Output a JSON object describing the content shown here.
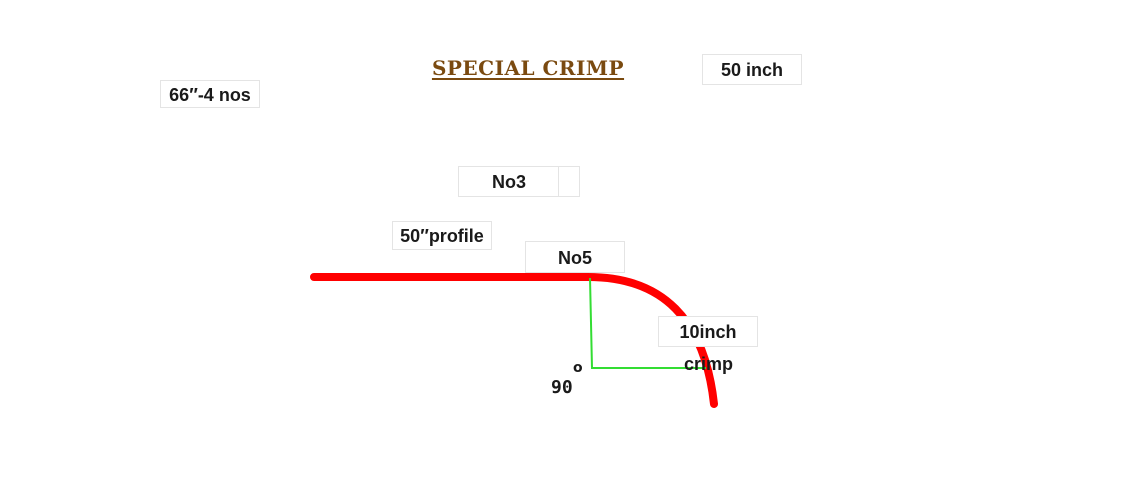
{
  "title": "SPECIAL  CRIMP",
  "labels": {
    "quantity": "66″-4 nos",
    "width": "50 inch",
    "gauge_top": "No3",
    "profile": "50″profile",
    "gauge_bottom": "No5",
    "crimp_size": "10inch",
    "crimp_word": "crimp",
    "angle_value": "90",
    "angle_unit": "o"
  },
  "colors": {
    "title": "#7a4a10",
    "profile_line": "#ff0000",
    "guide_line": "#33dd33"
  }
}
